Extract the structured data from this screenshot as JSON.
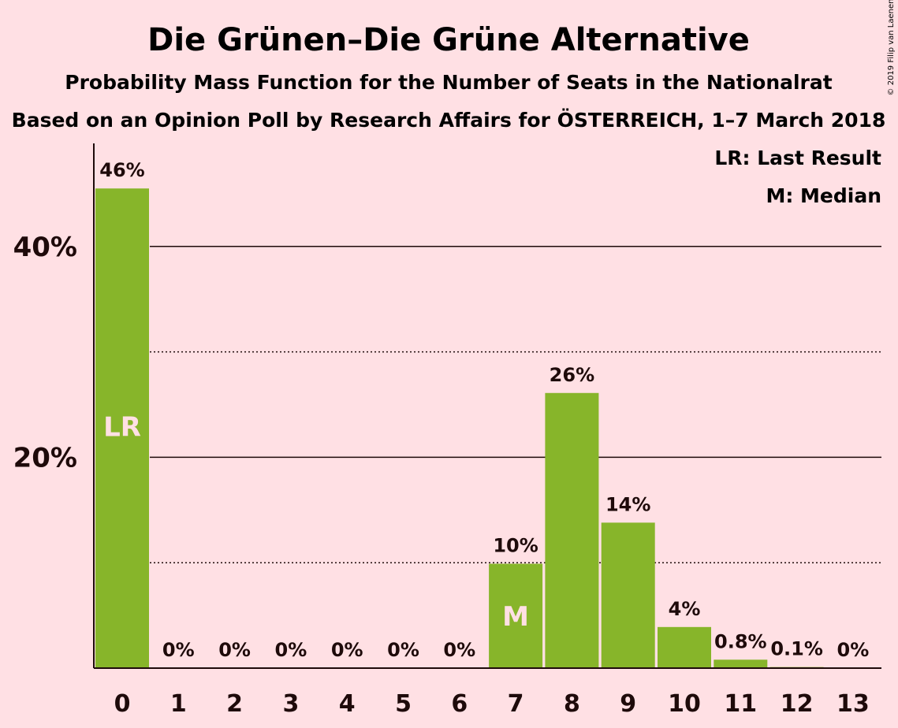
{
  "chart_data": {
    "type": "bar",
    "title": "Die Grünen–Die Grüne Alternative",
    "subtitle": "Probability Mass Function for the Number of Seats in the Nationalrat",
    "subtitle2": "Based on an Opinion Poll by Research Affairs for ÖSTERREICH, 1–7 March 2018",
    "copyright": "© 2019 Filip van Laenen",
    "legend": [
      "LR: Last Result",
      "M: Median"
    ],
    "legend_position": "top-right",
    "categories": [
      "0",
      "1",
      "2",
      "3",
      "4",
      "5",
      "6",
      "7",
      "8",
      "9",
      "10",
      "11",
      "12",
      "13"
    ],
    "values": [
      45.5,
      0,
      0,
      0,
      0,
      0,
      0,
      9.9,
      26.1,
      13.8,
      3.9,
      0.8,
      0.1,
      0
    ],
    "value_labels": [
      "46%",
      "0%",
      "0%",
      "0%",
      "0%",
      "0%",
      "0%",
      "10%",
      "26%",
      "14%",
      "4%",
      "0.8%",
      "0.1%",
      "0%"
    ],
    "markers": {
      "0": "LR",
      "7": "M"
    },
    "ylim": [
      0,
      48
    ],
    "yticks": [
      {
        "value": 20,
        "label": "20%"
      },
      {
        "value": 40,
        "label": "40%"
      }
    ],
    "minor_gridlines": [
      10,
      30
    ],
    "bar_color": "#87B52A",
    "background": "#FFE0E4",
    "text_color": "#1e0a0a"
  }
}
